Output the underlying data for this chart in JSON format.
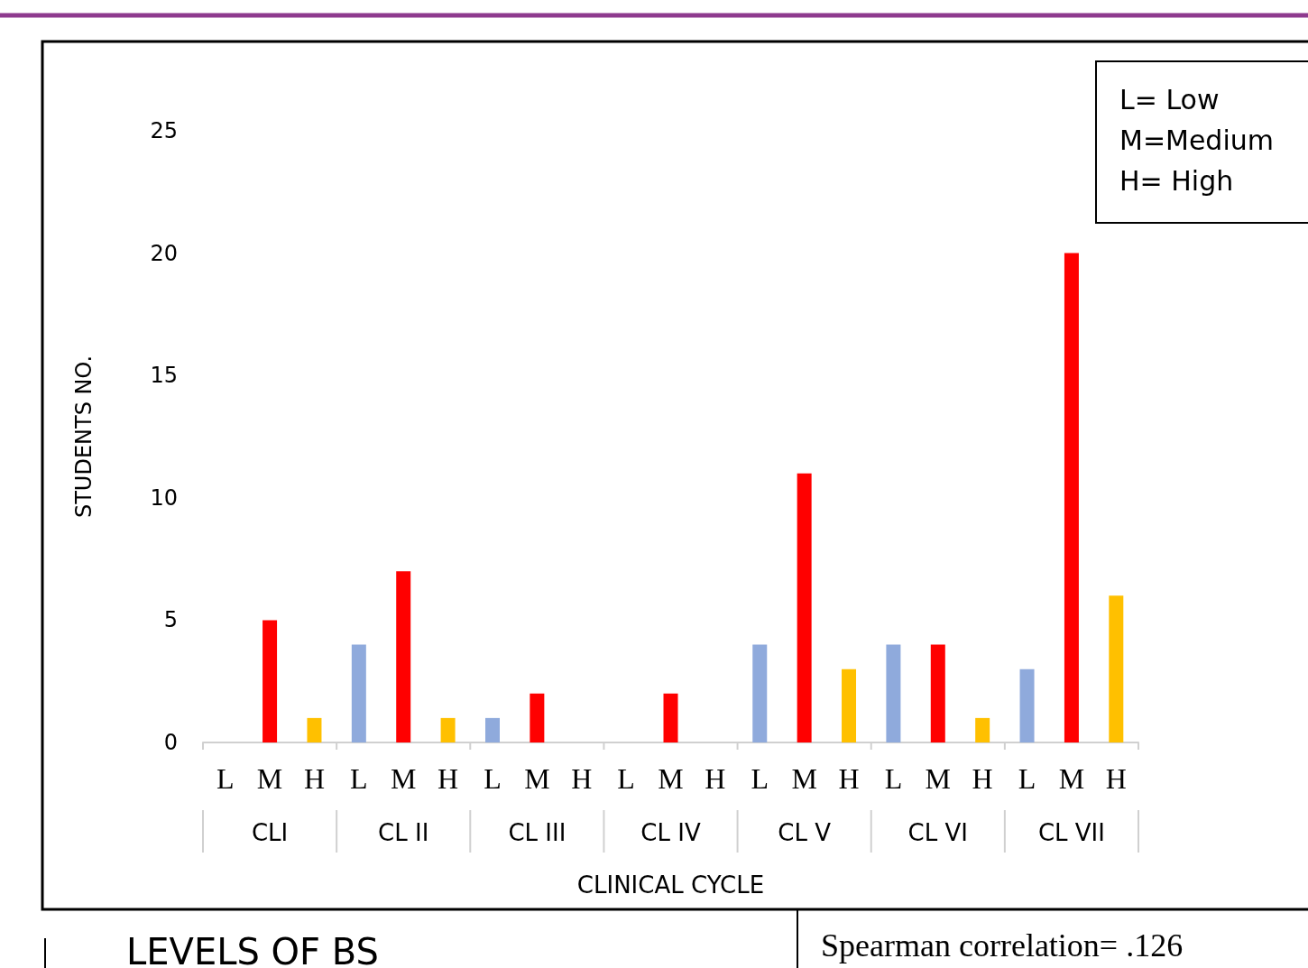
{
  "chart_data": {
    "type": "bar",
    "categories": [
      "L",
      "M",
      "H",
      "L",
      "M",
      "H",
      "L",
      "M",
      "H",
      "L",
      "M",
      "H",
      "L",
      "M",
      "H",
      "L",
      "M",
      "H",
      "L",
      "M",
      "H"
    ],
    "values": [
      0,
      5,
      1,
      4,
      7,
      1,
      1,
      2,
      0,
      0,
      2,
      0,
      4,
      11,
      3,
      4,
      4,
      1,
      3,
      20,
      6
    ],
    "colors": [
      "#8faadc",
      "#ff0000",
      "#ffc000",
      "#8faadc",
      "#ff0000",
      "#ffc000",
      "#8faadc",
      "#ff0000",
      "#ffc000",
      "#8faadc",
      "#ff0000",
      "#ffc000",
      "#8faadc",
      "#ff0000",
      "#ffc000",
      "#8faadc",
      "#ff0000",
      "#ffc000",
      "#8faadc",
      "#ff0000",
      "#ffc000"
    ],
    "xlabel": "CLINICAL CYCLE",
    "ylabel": "STUDENTS NO.",
    "ylim": [
      0,
      25
    ],
    "yticks": [
      0,
      5,
      10,
      15,
      20,
      25
    ],
    "annotations": [
      "CLI",
      "CL II",
      "CL III",
      "CL IV",
      "CL V",
      "CL VI",
      "CL VII",
      "L= Low\nM=Medium\nH= High",
      "LEVELS OF BS",
      "Spearman correlation= .126"
    ]
  }
}
